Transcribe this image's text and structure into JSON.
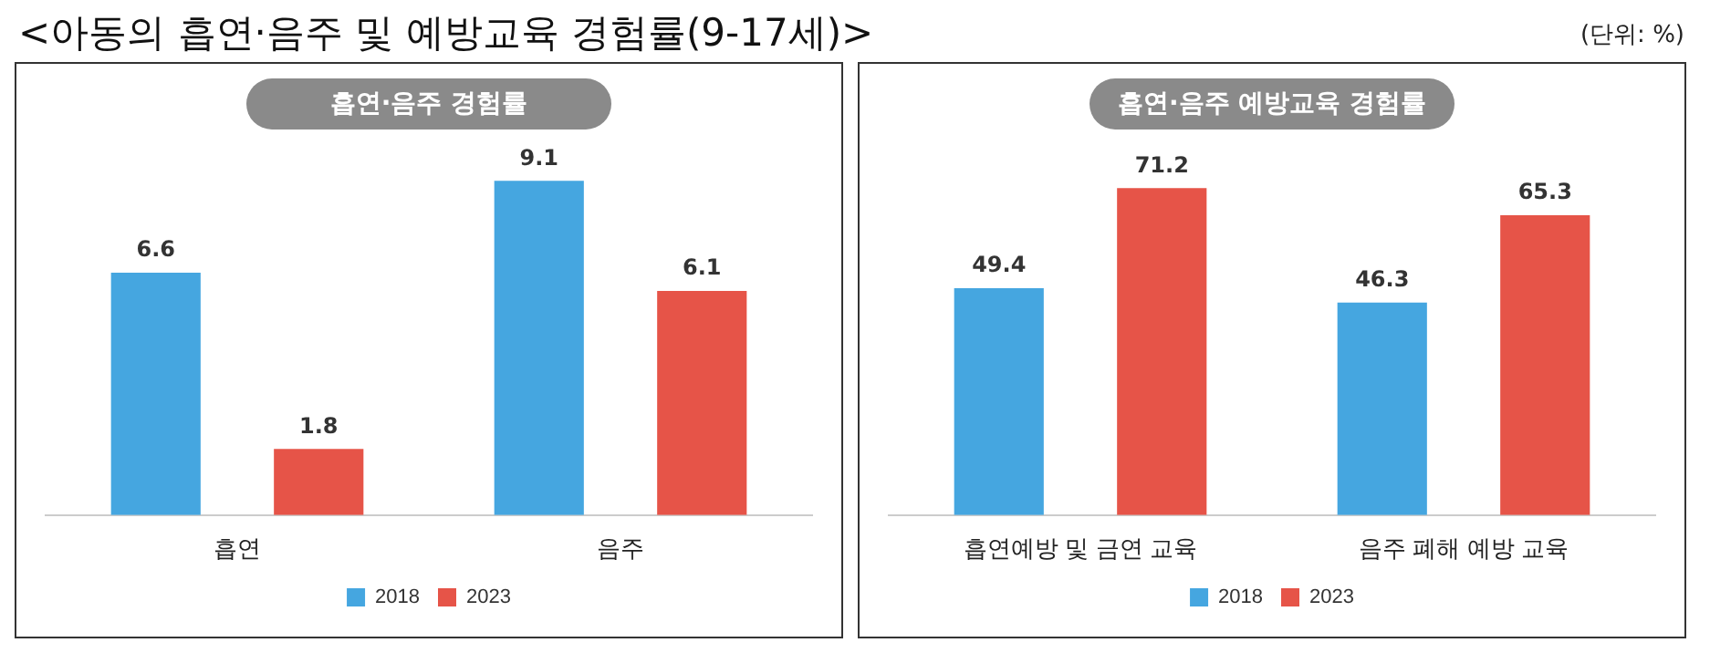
{
  "chart_data": [
    {
      "type": "bar",
      "title": "흡연·음주 경험률",
      "annotations": [
        "<아동의 흡연·음주 및 예방교육 경험률(9-17세)>",
        "(단위: %)"
      ],
      "categories": [
        "흡연",
        "음주"
      ],
      "series": [
        {
          "name": "2018",
          "color": "#45a6e0",
          "values": [
            6.6,
            9.1
          ]
        },
        {
          "name": "2023",
          "color": "#e65448",
          "values": [
            1.8,
            6.1
          ]
        }
      ],
      "data_labels": true,
      "legend": "bottom",
      "grid": false,
      "tick_labels": "x"
    },
    {
      "type": "bar",
      "title": "흡연·음주 예방교육 경험률",
      "categories": [
        "흡연예방 및 금연 교육",
        "음주 폐해 예방 교육"
      ],
      "series": [
        {
          "name": "2018",
          "color": "#45a6e0",
          "values": [
            49.4,
            46.3
          ]
        },
        {
          "name": "2023",
          "color": "#e65448",
          "values": [
            71.2,
            65.3
          ]
        }
      ],
      "data_labels": true,
      "legend": "bottom",
      "grid": false,
      "tick_labels": "x"
    }
  ]
}
